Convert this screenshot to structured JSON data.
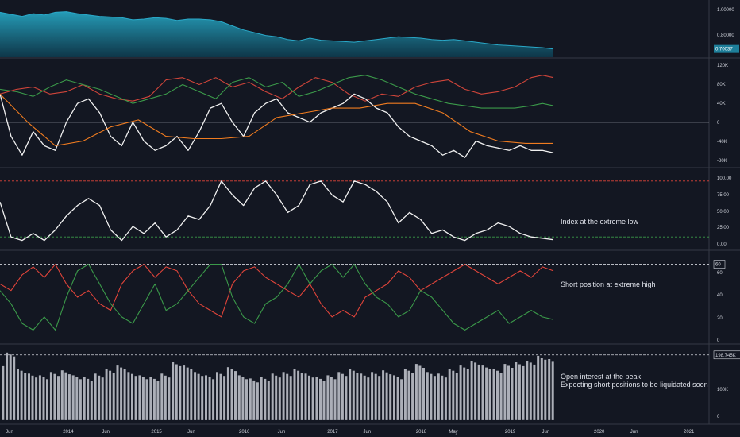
{
  "chart_data": [
    {
      "type": "area",
      "panel": "price",
      "ylim": [
        0.64,
        1.06
      ],
      "y_ticks": [
        "1.00000",
        "0.80000"
      ],
      "last_value": 0.70037,
      "last_value_label": "0.70037",
      "colors": {
        "line": "#2aa9c9",
        "fill_top": "#26a3bf",
        "fill_bottom": "#0e3a4d",
        "tag": "#1e7f9a"
      },
      "series": [
        {
          "x": [
            0,
            0.02,
            0.04,
            0.06,
            0.08,
            0.1,
            0.12,
            0.14,
            0.16,
            0.18,
            0.2,
            0.22,
            0.24,
            0.26,
            0.28,
            0.3,
            0.32,
            0.34,
            0.36,
            0.38,
            0.4,
            0.42,
            0.44,
            0.46,
            0.48,
            0.5,
            0.52,
            0.54,
            0.56,
            0.58,
            0.6,
            0.62,
            0.64,
            0.66,
            0.68,
            0.7,
            0.72,
            0.74,
            0.76,
            0.78,
            0.8,
            0.82,
            0.84,
            0.86,
            0.88,
            0.9,
            0.92,
            0.94,
            0.96,
            0.98,
            1
          ],
          "y": [
            0.97,
            0.955,
            0.94,
            0.96,
            0.95,
            0.97,
            0.975,
            0.96,
            0.95,
            0.94,
            0.935,
            0.93,
            0.915,
            0.92,
            0.93,
            0.925,
            0.91,
            0.92,
            0.92,
            0.915,
            0.9,
            0.87,
            0.84,
            0.82,
            0.8,
            0.79,
            0.77,
            0.76,
            0.78,
            0.765,
            0.76,
            0.755,
            0.75,
            0.76,
            0.77,
            0.78,
            0.79,
            0.785,
            0.78,
            0.77,
            0.765,
            0.77,
            0.76,
            0.75,
            0.74,
            0.73,
            0.725,
            0.72,
            0.715,
            0.71,
            0.7
          ]
        }
      ]
    },
    {
      "type": "line",
      "panel": "positions",
      "ylim": [
        -95000,
        135000
      ],
      "y_ticks": [
        "120K",
        "80K",
        "40K",
        "0",
        "-40K",
        "-80K"
      ],
      "zero_line": 0,
      "series": [
        {
          "color": "#d0453a",
          "x": [
            0,
            0.03,
            0.06,
            0.09,
            0.12,
            0.15,
            0.18,
            0.21,
            0.24,
            0.27,
            0.3,
            0.33,
            0.36,
            0.39,
            0.42,
            0.45,
            0.48,
            0.51,
            0.54,
            0.57,
            0.6,
            0.63,
            0.66,
            0.69,
            0.72,
            0.75,
            0.78,
            0.81,
            0.84,
            0.87,
            0.9,
            0.93,
            0.96,
            0.98,
            1
          ],
          "y": [
            60000,
            70000,
            75000,
            60000,
            65000,
            80000,
            60000,
            50000,
            45000,
            55000,
            90000,
            95000,
            80000,
            95000,
            75000,
            85000,
            65000,
            50000,
            75000,
            95000,
            85000,
            60000,
            45000,
            60000,
            55000,
            75000,
            85000,
            90000,
            70000,
            60000,
            65000,
            75000,
            95000,
            100000,
            95000
          ]
        },
        {
          "color": "#3b9a4a",
          "x": [
            0,
            0.03,
            0.06,
            0.09,
            0.12,
            0.15,
            0.18,
            0.21,
            0.24,
            0.27,
            0.3,
            0.33,
            0.36,
            0.39,
            0.42,
            0.45,
            0.48,
            0.51,
            0.54,
            0.57,
            0.6,
            0.63,
            0.66,
            0.69,
            0.72,
            0.75,
            0.78,
            0.81,
            0.84,
            0.87,
            0.9,
            0.93,
            0.96,
            0.98,
            1
          ],
          "y": [
            70000,
            65000,
            55000,
            75000,
            90000,
            80000,
            70000,
            55000,
            40000,
            50000,
            60000,
            80000,
            65000,
            50000,
            85000,
            95000,
            75000,
            85000,
            55000,
            65000,
            80000,
            95000,
            100000,
            90000,
            75000,
            60000,
            50000,
            40000,
            35000,
            30000,
            30000,
            30000,
            35000,
            40000,
            35000
          ]
        },
        {
          "color": "#f0f0f0",
          "x": [
            0,
            0.02,
            0.04,
            0.06,
            0.08,
            0.1,
            0.12,
            0.14,
            0.16,
            0.18,
            0.2,
            0.22,
            0.24,
            0.26,
            0.28,
            0.3,
            0.32,
            0.34,
            0.36,
            0.38,
            0.4,
            0.42,
            0.44,
            0.46,
            0.48,
            0.5,
            0.52,
            0.54,
            0.56,
            0.58,
            0.6,
            0.62,
            0.64,
            0.66,
            0.68,
            0.7,
            0.72,
            0.74,
            0.76,
            0.78,
            0.8,
            0.82,
            0.84,
            0.86,
            0.88,
            0.9,
            0.92,
            0.94,
            0.96,
            0.98,
            1
          ],
          "y": [
            60000,
            -30000,
            -70000,
            -20000,
            -50000,
            -60000,
            0,
            40000,
            50000,
            20000,
            -30000,
            -50000,
            0,
            -40000,
            -60000,
            -50000,
            -30000,
            -60000,
            -20000,
            30000,
            40000,
            0,
            -30000,
            20000,
            40000,
            50000,
            20000,
            10000,
            0,
            20000,
            30000,
            40000,
            60000,
            50000,
            30000,
            20000,
            -10000,
            -30000,
            -40000,
            -50000,
            -70000,
            -60000,
            -75000,
            -40000,
            -50000,
            -55000,
            -60000,
            -50000,
            -60000,
            -60000,
            -65000
          ]
        },
        {
          "color": "#f07c20",
          "x": [
            0,
            0.05,
            0.1,
            0.15,
            0.2,
            0.25,
            0.3,
            0.35,
            0.4,
            0.45,
            0.5,
            0.55,
            0.6,
            0.65,
            0.7,
            0.75,
            0.8,
            0.85,
            0.9,
            0.95,
            1
          ],
          "y": [
            60000,
            0,
            -50000,
            -40000,
            -10000,
            5000,
            -30000,
            -35000,
            -35000,
            -30000,
            10000,
            20000,
            30000,
            30000,
            40000,
            40000,
            20000,
            -20000,
            -40000,
            -45000,
            -45000
          ]
        }
      ]
    },
    {
      "type": "line",
      "panel": "index",
      "ylim": [
        -8,
        108
      ],
      "y_ticks": [
        "100.00",
        "75.00",
        "50.00",
        "25.00",
        "0.00"
      ],
      "ref_lines": [
        {
          "value": 90,
          "color": "#e0443a"
        },
        {
          "value": 10,
          "color": "#3b9a4a"
        }
      ],
      "series": [
        {
          "color": "#f0f0f0",
          "x": [
            0,
            0.02,
            0.04,
            0.06,
            0.08,
            0.1,
            0.12,
            0.14,
            0.16,
            0.18,
            0.2,
            0.22,
            0.24,
            0.26,
            0.28,
            0.3,
            0.32,
            0.34,
            0.36,
            0.38,
            0.4,
            0.42,
            0.44,
            0.46,
            0.48,
            0.5,
            0.52,
            0.54,
            0.56,
            0.58,
            0.6,
            0.62,
            0.64,
            0.66,
            0.68,
            0.7,
            0.72,
            0.74,
            0.76,
            0.78,
            0.8,
            0.82,
            0.84,
            0.86,
            0.88,
            0.9,
            0.92,
            0.94,
            0.96,
            0.98,
            1
          ],
          "y": [
            60,
            10,
            5,
            15,
            5,
            20,
            40,
            55,
            65,
            55,
            20,
            5,
            25,
            15,
            30,
            10,
            20,
            40,
            35,
            55,
            90,
            70,
            55,
            80,
            90,
            70,
            45,
            55,
            85,
            90,
            70,
            60,
            90,
            85,
            75,
            60,
            30,
            45,
            35,
            15,
            20,
            10,
            5,
            15,
            20,
            30,
            25,
            15,
            10,
            8,
            6
          ]
        }
      ],
      "annotation": "Index at the extreme low"
    },
    {
      "type": "line",
      "panel": "percent",
      "ylim": [
        0,
        70
      ],
      "y_ticks": [
        "60",
        "40",
        "20",
        "0"
      ],
      "ref_lines": [
        {
          "value": 60,
          "color": "#d1d4dc",
          "label": "60"
        }
      ],
      "series": [
        {
          "color": "#e0443a",
          "x": [
            0,
            0.02,
            0.04,
            0.06,
            0.08,
            0.1,
            0.12,
            0.14,
            0.16,
            0.18,
            0.2,
            0.22,
            0.24,
            0.26,
            0.28,
            0.3,
            0.32,
            0.34,
            0.36,
            0.38,
            0.4,
            0.42,
            0.44,
            0.46,
            0.48,
            0.5,
            0.52,
            0.54,
            0.56,
            0.58,
            0.6,
            0.62,
            0.64,
            0.66,
            0.68,
            0.7,
            0.72,
            0.74,
            0.76,
            0.78,
            0.8,
            0.82,
            0.84,
            0.86,
            0.88,
            0.9,
            0.92,
            0.94,
            0.96,
            0.98,
            1
          ],
          "y": [
            45,
            40,
            52,
            58,
            50,
            60,
            45,
            35,
            40,
            30,
            25,
            45,
            55,
            60,
            50,
            58,
            55,
            40,
            30,
            25,
            20,
            45,
            55,
            58,
            50,
            45,
            40,
            35,
            45,
            30,
            20,
            25,
            20,
            35,
            40,
            45,
            55,
            50,
            40,
            45,
            50,
            55,
            60,
            55,
            50,
            45,
            50,
            55,
            50,
            58,
            55
          ]
        },
        {
          "color": "#3b9a4a",
          "x": [
            0,
            0.02,
            0.04,
            0.06,
            0.08,
            0.1,
            0.12,
            0.14,
            0.16,
            0.18,
            0.2,
            0.22,
            0.24,
            0.26,
            0.28,
            0.3,
            0.32,
            0.34,
            0.36,
            0.38,
            0.4,
            0.42,
            0.44,
            0.46,
            0.48,
            0.5,
            0.52,
            0.54,
            0.56,
            0.58,
            0.6,
            0.62,
            0.64,
            0.66,
            0.68,
            0.7,
            0.72,
            0.74,
            0.76,
            0.78,
            0.8,
            0.82,
            0.84,
            0.86,
            0.88,
            0.9,
            0.92,
            0.94,
            0.96,
            0.98,
            1
          ],
          "y": [
            40,
            30,
            15,
            10,
            20,
            10,
            35,
            55,
            60,
            45,
            30,
            20,
            15,
            30,
            45,
            25,
            30,
            40,
            50,
            60,
            60,
            35,
            20,
            15,
            30,
            35,
            45,
            60,
            45,
            55,
            60,
            50,
            60,
            45,
            35,
            30,
            20,
            25,
            40,
            35,
            25,
            15,
            10,
            15,
            20,
            25,
            15,
            20,
            25,
            20,
            18
          ]
        }
      ],
      "annotation": "Short position at extreme high"
    },
    {
      "type": "bar",
      "panel": "open_interest",
      "ylim": [
        -15000,
        230000
      ],
      "y_ticks": [
        "100K",
        "0"
      ],
      "ref_lines": [
        {
          "value": 198745,
          "color": "#d1d4dc",
          "label": "198.745K"
        }
      ],
      "color": "#c8cad2",
      "x": [
        0,
        0.02,
        0.04,
        0.06,
        0.08,
        0.1,
        0.12,
        0.14,
        0.16,
        0.18,
        0.2,
        0.22,
        0.24,
        0.26,
        0.28,
        0.3,
        0.32,
        0.34,
        0.36,
        0.38,
        0.4,
        0.42,
        0.44,
        0.46,
        0.48,
        0.5,
        0.52,
        0.54,
        0.56,
        0.58,
        0.6,
        0.62,
        0.64,
        0.66,
        0.68,
        0.7,
        0.72,
        0.74,
        0.76,
        0.78,
        0.8,
        0.82,
        0.84,
        0.86,
        0.88,
        0.9,
        0.92,
        0.94,
        0.96,
        0.98,
        1
      ],
      "values": [
        170000,
        200000,
        150000,
        135000,
        130000,
        140000,
        145000,
        130000,
        125000,
        135000,
        150000,
        160000,
        140000,
        130000,
        125000,
        135000,
        170000,
        160000,
        140000,
        130000,
        140000,
        155000,
        130000,
        120000,
        125000,
        135000,
        140000,
        150000,
        135000,
        125000,
        130000,
        140000,
        150000,
        135000,
        140000,
        145000,
        130000,
        150000,
        165000,
        140000,
        135000,
        150000,
        160000,
        175000,
        160000,
        150000,
        165000,
        170000,
        175000,
        190000,
        180000
      ],
      "annotation_lines": [
        "Open interest at the peak",
        "Expecting short positions to be liquidated soon"
      ]
    }
  ],
  "x_axis": {
    "labels": [
      {
        "label": "Jun",
        "pos": 0.0
      },
      {
        "label": "2014",
        "pos": 0.155
      },
      {
        "label": "Jun",
        "pos": 0.254
      },
      {
        "label": "2015",
        "pos": 0.388
      },
      {
        "label": "Jun",
        "pos": 0.48
      },
      {
        "label": "2016",
        "pos": 0.62
      },
      {
        "label": "Jun",
        "pos": 0.718
      },
      {
        "label": "2017",
        "pos": 0.853
      },
      {
        "label": "Jun",
        "pos": 0.944
      },
      {
        "label": "2018",
        "pos": 1.087
      },
      {
        "label": "May",
        "pos": 1.172
      },
      {
        "label": "2019",
        "pos": 1.322
      },
      {
        "label": "Jun",
        "pos": 1.416
      },
      {
        "label": "2020",
        "pos": 1.557
      },
      {
        "label": "Jun",
        "pos": 1.649
      },
      {
        "label": "2021",
        "pos": 1.794
      }
    ]
  }
}
